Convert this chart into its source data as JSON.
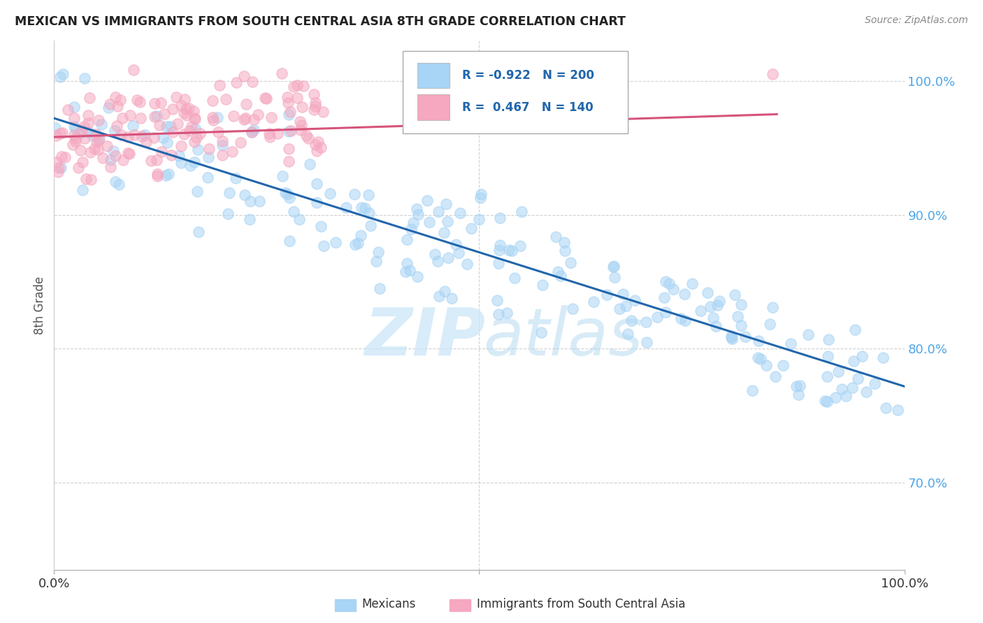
{
  "title": "MEXICAN VS IMMIGRANTS FROM SOUTH CENTRAL ASIA 8TH GRADE CORRELATION CHART",
  "source": "Source: ZipAtlas.com",
  "ylabel": "8th Grade",
  "legend_label_blue": "Mexicans",
  "legend_label_pink": "Immigrants from South Central Asia",
  "R_blue": -0.922,
  "N_blue": 200,
  "R_pink": 0.467,
  "N_pink": 140,
  "blue_color": "#a8d4f5",
  "pink_color": "#f5a8c0",
  "blue_line_color": "#2166ac",
  "pink_line_color": "#d6537a",
  "blue_text_color": "#2166ac",
  "pink_text_color": "#d6537a",
  "ytick_color": "#4da6e8",
  "watermark_zip": "ZIP",
  "watermark_atlas": "atlas",
  "background_color": "#ffffff",
  "xlim": [
    0.0,
    1.0
  ],
  "ylim": [
    0.635,
    1.03
  ],
  "yticks": [
    0.7,
    0.8,
    0.9,
    1.0
  ],
  "ytick_labels": [
    "70.0%",
    "80.0%",
    "90.0%",
    "100.0%"
  ],
  "blue_line_x": [
    0.0,
    1.0
  ],
  "blue_line_y": [
    0.972,
    0.772
  ],
  "pink_line_x": [
    0.0,
    0.85
  ],
  "pink_line_y": [
    0.958,
    0.975
  ]
}
